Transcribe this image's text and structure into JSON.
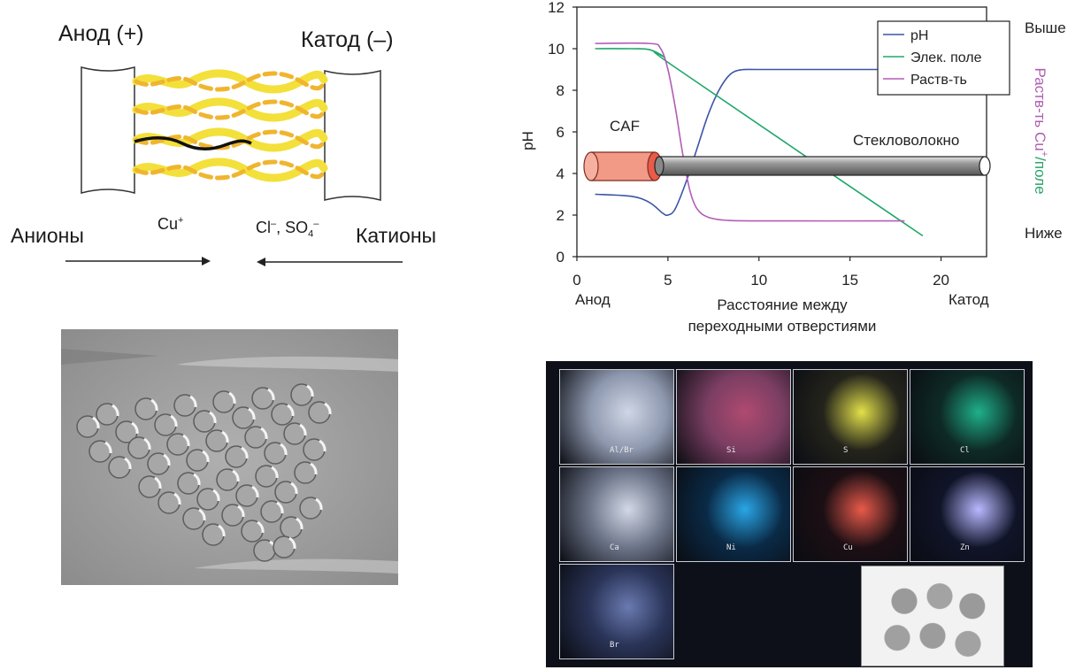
{
  "schematic": {
    "anode": "Анод (+)",
    "cathode": "Катод (–)",
    "anions": "Анионы",
    "cations": "Катионы",
    "cu_ion": "Cu",
    "cu_sup": "+",
    "cl": "Cl",
    "cl_sup": "–",
    "so4": ", SO",
    "so4_sub": "4",
    "so4_sup": "–"
  },
  "chart_data": {
    "type": "line",
    "x_ticks": [
      "0",
      "5",
      "10",
      "15",
      "20"
    ],
    "y_ticks": [
      "0",
      "2",
      "4",
      "6",
      "8",
      "10",
      "12"
    ],
    "xlim": [
      0,
      22.5
    ],
    "ylim": [
      0,
      12
    ],
    "ylabel": "pH",
    "xlabel_line1": "Расстояние между",
    "xlabel_line2": "переходными отверстиями",
    "x_left_label": "Анод",
    "x_right_label": "Катод",
    "right_top_label": "Выше",
    "right_bottom_label": "Ниже",
    "right_axis_label": {
      "part1": "Раств-ть Cu",
      "sup": "+",
      "part2": "/поле",
      "color1": "#b05cb2",
      "color2": "#2aa36b"
    },
    "legend_position": "top-right",
    "legend": [
      "pH",
      "Элек. поле",
      "Раств-ть"
    ],
    "annotations": {
      "caf": "CAF",
      "fiber": "Стекловолокно"
    },
    "series": [
      {
        "name": "pH",
        "color": "#3a56a6",
        "points": [
          [
            1,
            3.0
          ],
          [
            3,
            2.9
          ],
          [
            4,
            2.6
          ],
          [
            4.7,
            2.1
          ],
          [
            5,
            2.0
          ],
          [
            5.4,
            2.3
          ],
          [
            6,
            3.6
          ],
          [
            6.6,
            5.2
          ],
          [
            7.2,
            6.8
          ],
          [
            7.8,
            8.0
          ],
          [
            8.4,
            8.75
          ],
          [
            9,
            8.98
          ],
          [
            10,
            9.0
          ],
          [
            13,
            9.0
          ],
          [
            17,
            9.0
          ]
        ]
      },
      {
        "name": "Элек. поле",
        "color": "#1fa86b",
        "points": [
          [
            1,
            10.0
          ],
          [
            3,
            10.0
          ],
          [
            4,
            9.95
          ],
          [
            4.8,
            9.6
          ],
          [
            5.4,
            9.1
          ],
          [
            19,
            1.0
          ]
        ]
      },
      {
        "name": "Раств-ть",
        "color": "#b35db5",
        "points": [
          [
            1,
            10.25
          ],
          [
            4,
            10.25
          ],
          [
            4.6,
            10.0
          ],
          [
            5.0,
            9.0
          ],
          [
            5.4,
            7.2
          ],
          [
            5.8,
            5.0
          ],
          [
            6.2,
            3.2
          ],
          [
            6.6,
            2.3
          ],
          [
            7.2,
            1.9
          ],
          [
            8.2,
            1.75
          ],
          [
            10,
            1.72
          ],
          [
            18,
            1.72
          ]
        ]
      }
    ]
  },
  "edx": {
    "tiles": [
      "Al/Br",
      "Si",
      "S",
      "Cl",
      "Ca",
      "Ni",
      "Cu",
      "Zn",
      "Br"
    ]
  }
}
